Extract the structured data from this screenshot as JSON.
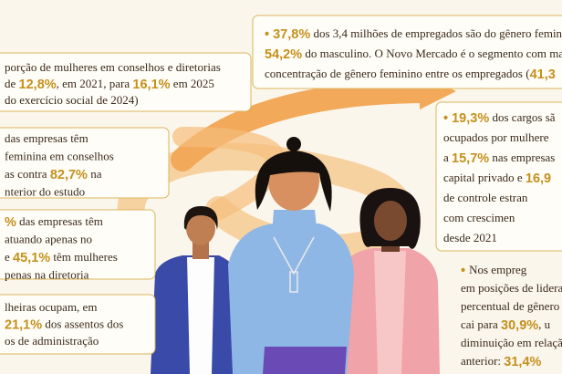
{
  "boxes": [
    {
      "lines": [
        [
          "porção de mulheres em conselhos e diretorias"
        ],
        [
          "de ",
          {
            "text": "12,8%",
            "em": true
          },
          ", em 2021, para ",
          {
            "text": "16,1%",
            "em": true
          },
          " em 2025"
        ],
        [
          "do exercício social de 2024)"
        ]
      ]
    },
    {
      "lines": [
        [
          {
            "text": "• 37,8%",
            "em": true
          },
          " dos 3,4 milhões de empregados são do gênero femin"
        ],
        [
          {
            "text": "54,2%",
            "em": true
          },
          " do masculino. O Novo Mercado é o segmento com ma"
        ],
        [
          "concentração de gênero feminino entre os empregados (",
          {
            "text": "41,3",
            "em": true
          }
        ]
      ]
    },
    {
      "lines": [
        [
          "das empresas têm"
        ],
        [
          "feminina em conselhos"
        ],
        [
          "as contra ",
          {
            "text": "82,7%",
            "em": true
          },
          " na"
        ],
        [
          "nterior do estudo"
        ]
      ]
    },
    {
      "lines": [
        [
          {
            "text": "%",
            "em": true
          },
          " das empresas têm"
        ],
        [
          "atuando apenas no"
        ],
        [
          "e ",
          {
            "text": "45,1%",
            "em": true
          },
          " têm mulheres"
        ],
        [
          "penas na diretoria"
        ]
      ]
    },
    {
      "lines": [
        [
          "lheiras ocupam, em"
        ],
        [
          {
            "text": "21,1%",
            "em": true
          },
          " dos assentos dos"
        ],
        [
          "os de administração"
        ]
      ]
    },
    {
      "lines": [
        [
          {
            "text": "• 19,3%",
            "em": true
          },
          " dos cargos sã"
        ],
        [
          "ocupados por mulhere"
        ],
        [
          "a ",
          {
            "text": "15,7%",
            "em": true
          },
          " nas empresas"
        ],
        [
          "capital privado e ",
          {
            "text": "16,9",
            "em": true
          }
        ],
        [
          "de controle estran"
        ],
        [
          "com crescimen"
        ],
        [
          "desde 2021"
        ]
      ]
    },
    {
      "lines": [
        [
          {
            "text": "• ",
            "em": true
          },
          "Nos empreg"
        ],
        [
          "em posições de lideran"
        ],
        [
          "percentual de gênero"
        ],
        [
          "cai para ",
          {
            "text": "30,9%",
            "em": true
          },
          ", u"
        ],
        [
          "diminuição em relaçã"
        ],
        [
          "anterior: ",
          {
            "text": "31,4%",
            "em": true
          }
        ]
      ]
    }
  ]
}
